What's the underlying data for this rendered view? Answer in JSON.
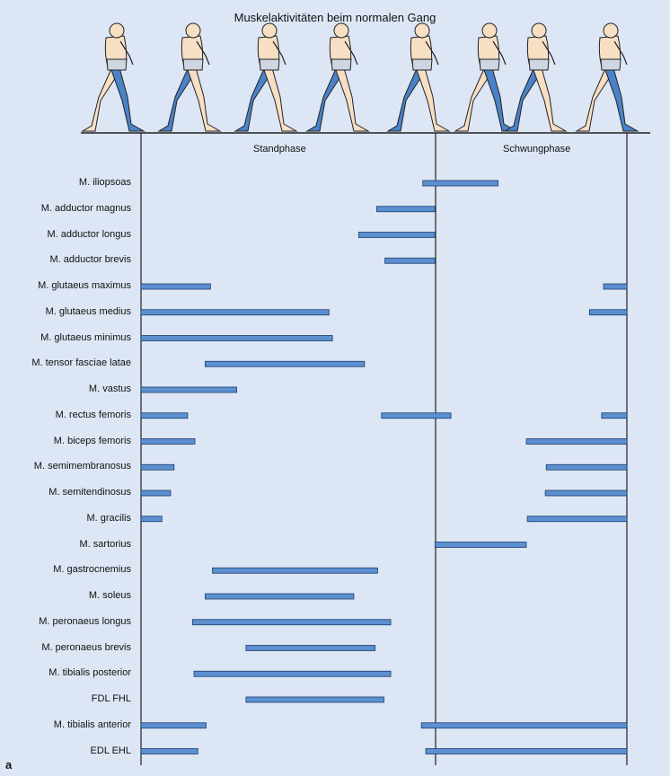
{
  "title": "Muskelaktivitäten beim normalen Gang",
  "phases": {
    "stance": "Standphase",
    "swing": "Schwungphase"
  },
  "figure_letter": "a",
  "colors": {
    "bar_fill": "#5b8fd0",
    "bar_stroke": "#1e3f70",
    "leg_active": "#4a82c8",
    "skin": "#f7dfc4",
    "line": "#222222",
    "background": "#dde6f4"
  },
  "chart_data": {
    "type": "gantt",
    "x_range": [
      0,
      1
    ],
    "phase_boundary": 0.605,
    "muscles": [
      {
        "name": "M. iliopsoas",
        "intervals": [
          [
            0.58,
            0.735
          ]
        ]
      },
      {
        "name": "M. adductor magnus",
        "intervals": [
          [
            0.485,
            0.605
          ]
        ]
      },
      {
        "name": "M. adductor longus",
        "intervals": [
          [
            0.448,
            0.605
          ]
        ]
      },
      {
        "name": "M. adductor brevis",
        "intervals": [
          [
            0.502,
            0.605
          ]
        ]
      },
      {
        "name": "M. glutaeus maximus",
        "intervals": [
          [
            0.0,
            0.143
          ],
          [
            0.952,
            1.0
          ]
        ]
      },
      {
        "name": "M. glutaeus medius",
        "intervals": [
          [
            0.0,
            0.387
          ],
          [
            0.923,
            1.0
          ]
        ]
      },
      {
        "name": "M. glutaeus minimus",
        "intervals": [
          [
            0.0,
            0.394
          ]
        ]
      },
      {
        "name": "M. tensor fasciae latae",
        "intervals": [
          [
            0.132,
            0.46
          ]
        ]
      },
      {
        "name": "M. vastus",
        "intervals": [
          [
            0.0,
            0.197
          ]
        ]
      },
      {
        "name": "M. rectus femoris",
        "intervals": [
          [
            0.0,
            0.096
          ],
          [
            0.495,
            0.638
          ],
          [
            0.948,
            1.0
          ]
        ]
      },
      {
        "name": "M. biceps femoris",
        "intervals": [
          [
            0.0,
            0.111
          ],
          [
            0.793,
            1.0
          ]
        ]
      },
      {
        "name": "M. semimembranosus",
        "intervals": [
          [
            0.0,
            0.068
          ],
          [
            0.834,
            1.0
          ]
        ]
      },
      {
        "name": "M. semitendinosus",
        "intervals": [
          [
            0.0,
            0.061
          ],
          [
            0.832,
            1.0
          ]
        ]
      },
      {
        "name": "M. gracilis",
        "intervals": [
          [
            0.0,
            0.043
          ],
          [
            0.795,
            1.0
          ]
        ]
      },
      {
        "name": "M. sartorius",
        "intervals": [
          [
            0.605,
            0.793
          ]
        ]
      },
      {
        "name": "M. gastrocnemius",
        "intervals": [
          [
            0.147,
            0.487
          ]
        ]
      },
      {
        "name": "M. soleus",
        "intervals": [
          [
            0.132,
            0.438
          ]
        ]
      },
      {
        "name": "M. peronaeus longus",
        "intervals": [
          [
            0.106,
            0.514
          ]
        ]
      },
      {
        "name": "M. peronaeus brevis",
        "intervals": [
          [
            0.216,
            0.482
          ]
        ]
      },
      {
        "name": "M. tibialis posterior",
        "intervals": [
          [
            0.109,
            0.514
          ]
        ]
      },
      {
        "name": "FDL FHL",
        "intervals": [
          [
            0.216,
            0.5
          ]
        ]
      },
      {
        "name": "M. tibialis anterior",
        "intervals": [
          [
            0.0,
            0.134
          ],
          [
            0.577,
            1.0
          ]
        ]
      },
      {
        "name": "EDL EHL",
        "intervals": [
          [
            0.0,
            0.117
          ],
          [
            0.586,
            1.0
          ]
        ]
      }
    ]
  },
  "walking_figures": [
    {
      "name": "walking-figure-1",
      "active_leg": "front"
    },
    {
      "name": "walking-figure-2",
      "active_leg": "back"
    },
    {
      "name": "walking-figure-3",
      "active_leg": "back"
    },
    {
      "name": "walking-figure-4",
      "active_leg": "back"
    },
    {
      "name": "walking-figure-5",
      "active_leg": "back"
    },
    {
      "name": "walking-figure-6",
      "active_leg": "front"
    },
    {
      "name": "walking-figure-7",
      "active_leg": "back"
    },
    {
      "name": "walking-figure-8",
      "active_leg": "front"
    }
  ]
}
